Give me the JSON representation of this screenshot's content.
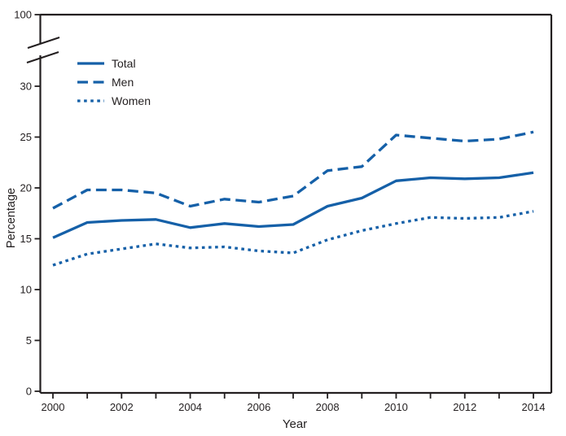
{
  "figure": {
    "y_axis_title": "Percentage",
    "x_axis_title": "Year"
  },
  "legend": {
    "items": [
      {
        "label": "Total",
        "style": "solid"
      },
      {
        "label": "Men",
        "style": "dashed"
      },
      {
        "label": "Women",
        "style": "dotted"
      }
    ]
  },
  "colors": {
    "line": "#1560a8",
    "axis": "#231f20",
    "text": "#231f20",
    "background": "#ffffff"
  },
  "chart_data": {
    "type": "line",
    "title": "",
    "xlabel": "Year",
    "ylabel": "Percentage",
    "x": [
      2000,
      2001,
      2002,
      2003,
      2004,
      2005,
      2006,
      2007,
      2008,
      2009,
      2010,
      2011,
      2012,
      2013,
      2014
    ],
    "series": [
      {
        "name": "Total",
        "style": "solid",
        "values": [
          15.1,
          16.6,
          16.8,
          16.9,
          16.1,
          16.5,
          16.2,
          16.4,
          18.2,
          19.0,
          20.7,
          21.0,
          20.9,
          21.0,
          21.5
        ]
      },
      {
        "name": "Men",
        "style": "dashed",
        "values": [
          18.0,
          19.8,
          19.8,
          19.5,
          18.2,
          18.9,
          18.6,
          19.2,
          21.7,
          22.1,
          25.2,
          24.9,
          24.6,
          24.8,
          25.5
        ]
      },
      {
        "name": "Women",
        "style": "dotted",
        "values": [
          12.4,
          13.5,
          14.0,
          14.5,
          14.1,
          14.2,
          13.8,
          13.6,
          14.9,
          15.8,
          16.5,
          17.1,
          17.0,
          17.1,
          17.7
        ]
      }
    ],
    "ylim": [
      0,
      30
    ],
    "y_ticks": [
      0,
      5,
      10,
      15,
      20,
      25,
      30
    ],
    "y_axis_break": {
      "upper_tick": 100
    },
    "x_ticks": [
      2000,
      2001,
      2002,
      2003,
      2004,
      2005,
      2006,
      2007,
      2008,
      2009,
      2010,
      2011,
      2012,
      2013,
      2014
    ],
    "x_tick_labels": [
      2000,
      2002,
      2004,
      2006,
      2008,
      2010,
      2012,
      2014
    ],
    "grid": false,
    "legend_position": "upper-left"
  }
}
